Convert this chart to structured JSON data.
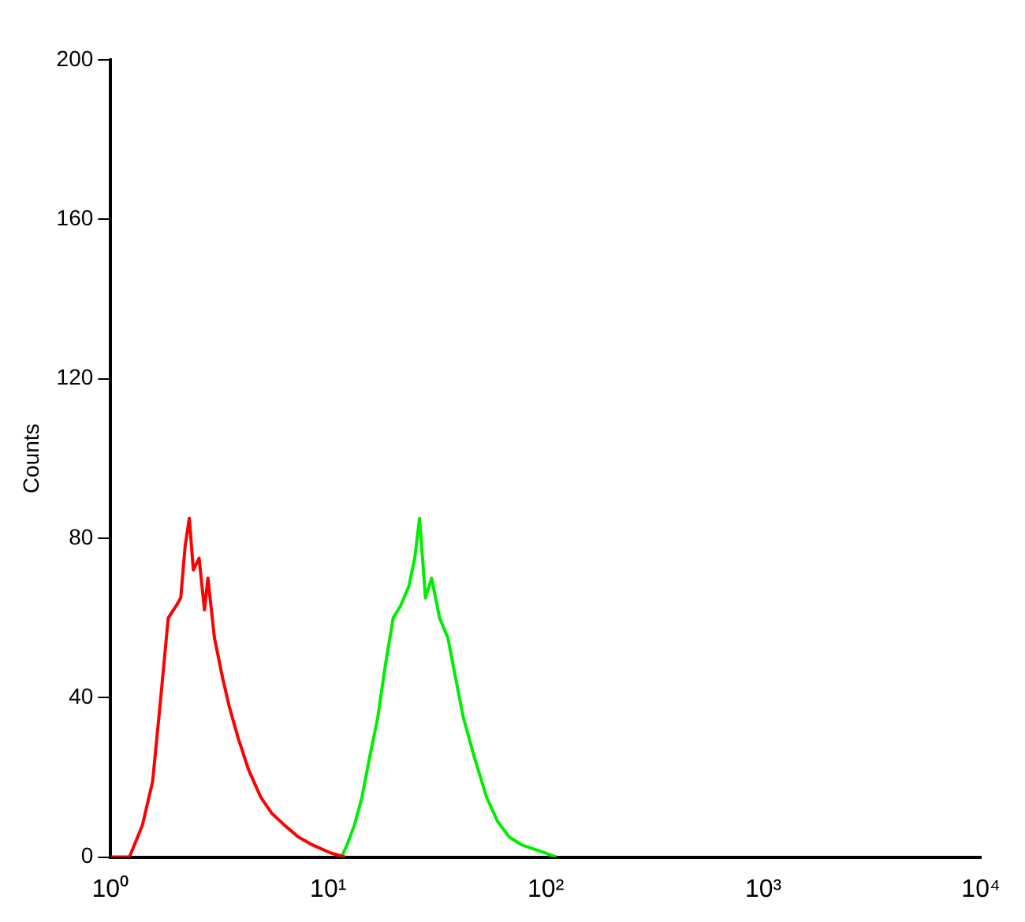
{
  "chart_data": {
    "type": "line",
    "ylabel": "Counts",
    "log": "x",
    "marker": "none",
    "grid": false,
    "legend": false,
    "xlim": [
      1,
      10000
    ],
    "xticks": [
      {
        "value": 1,
        "label": "10⁰"
      },
      {
        "value": 10,
        "label": "10¹"
      },
      {
        "value": 100,
        "label": "10²"
      },
      {
        "value": 1000,
        "label": "10³"
      },
      {
        "value": 10000,
        "label": "10⁴"
      }
    ],
    "ylim": [
      0,
      200
    ],
    "yticks": [
      0,
      40,
      80,
      120,
      160,
      200
    ],
    "series": [
      {
        "color": "#ff0000",
        "x": [
          1.0,
          1.22,
          1.4,
          1.56,
          1.7,
          1.84,
          2.0,
          2.1,
          2.2,
          2.3,
          2.4,
          2.55,
          2.7,
          2.8,
          3.0,
          3.27,
          3.5,
          3.85,
          4.3,
          4.9,
          5.5,
          6.3,
          7.3,
          8.5,
          10.3,
          12.0
        ],
        "values": [
          0,
          0,
          8,
          19,
          40,
          60,
          63,
          65,
          78,
          85,
          72,
          75,
          62,
          70,
          55,
          45,
          38,
          30,
          22,
          15,
          11,
          8,
          5,
          3,
          1,
          0
        ]
      },
      {
        "color": "#00ee00",
        "x": [
          11.5,
          12.2,
          13.2,
          14.3,
          15.5,
          16.9,
          18.3,
          19.9,
          21.5,
          23.5,
          25.0,
          26.3,
          28.0,
          29.9,
          32.5,
          35.5,
          38.5,
          41.8,
          47.0,
          53.5,
          60.0,
          68.0,
          78.0,
          88.0,
          100.0,
          112.0
        ],
        "values": [
          0,
          3,
          8,
          15,
          25,
          35,
          48,
          60,
          63,
          68,
          75,
          85,
          65,
          70,
          60,
          55,
          45,
          35,
          25,
          15,
          9,
          5,
          3,
          2,
          1,
          0
        ]
      }
    ]
  }
}
